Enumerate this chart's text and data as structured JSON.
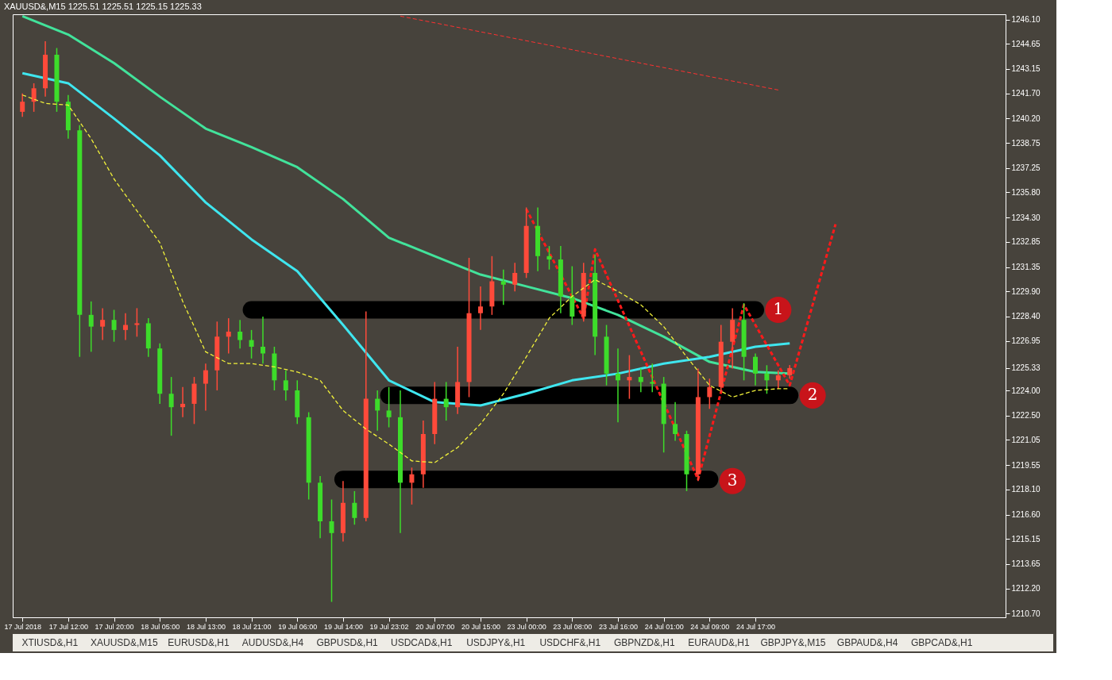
{
  "chart_data": {
    "type": "candlestick",
    "title": "XAUUSD&,M15  1225.51 1225.51 1225.15 1225.33",
    "categories": [
      "17 Jul 2018",
      null,
      null,
      null,
      "17 Jul 12:00",
      null,
      null,
      null,
      "17 Jul 20:00",
      null,
      null,
      null,
      "18 Jul 05:00",
      null,
      null,
      null,
      "18 Jul 13:00",
      null,
      null,
      null,
      "18 Jul 21:00",
      null,
      null,
      null,
      "19 Jul 06:00",
      null,
      null,
      null,
      "19 Jul 14:00",
      null,
      null,
      null,
      "19 Jul 23:02",
      null,
      null,
      null,
      "20 Jul 07:00",
      null,
      null,
      null,
      "20 Jul 15:00",
      null,
      null,
      null,
      "23 Jul 00:00",
      null,
      null,
      null,
      "23 Jul 08:00",
      null,
      null,
      null,
      "23 Jul 16:00",
      null,
      null,
      null,
      "24 Jul 01:00",
      null,
      null,
      null,
      "24 Jul 09:00",
      null,
      null,
      null,
      "24 Jul 17:00",
      null,
      null,
      null,
      null,
      null,
      null,
      null,
      null,
      null,
      null,
      null,
      null,
      null,
      null,
      null,
      null,
      null,
      null,
      null,
      null,
      null
    ],
    "ohlc": [
      [
        1240.6,
        1241.7,
        1240.3,
        1241.2
      ],
      [
        1241.2,
        1242.3,
        1240.6,
        1242.0
      ],
      [
        1242.0,
        1244.8,
        1241.5,
        1244.0
      ],
      [
        1244.0,
        1244.4,
        1240.6,
        1241.2
      ],
      [
        1241.2,
        1241.6,
        1239.0,
        1239.5
      ],
      [
        1239.5,
        1239.8,
        1226.0,
        1228.5
      ],
      [
        1228.5,
        1229.3,
        1226.3,
        1227.8
      ],
      [
        1227.8,
        1228.9,
        1227.0,
        1228.2
      ],
      [
        1228.2,
        1228.8,
        1226.9,
        1227.6
      ],
      [
        1227.6,
        1228.6,
        1227.0,
        1227.9
      ],
      [
        1227.9,
        1228.9,
        1227.2,
        1228.0
      ],
      [
        1228.0,
        1228.3,
        1226.0,
        1226.5
      ],
      [
        1226.5,
        1226.8,
        1223.2,
        1223.8
      ],
      [
        1223.8,
        1224.8,
        1221.3,
        1223.0
      ],
      [
        1223.0,
        1224.2,
        1222.4,
        1223.2
      ],
      [
        1223.2,
        1224.8,
        1222.0,
        1224.4
      ],
      [
        1224.4,
        1225.6,
        1222.8,
        1225.2
      ],
      [
        1225.2,
        1228.1,
        1224.0,
        1227.2
      ],
      [
        1227.2,
        1228.3,
        1226.2,
        1227.5
      ],
      [
        1227.5,
        1228.2,
        1226.5,
        1227.0
      ],
      [
        1227.0,
        1227.6,
        1225.9,
        1226.6
      ],
      [
        1226.6,
        1228.4,
        1225.6,
        1226.2
      ],
      [
        1226.2,
        1226.6,
        1224.0,
        1224.6
      ],
      [
        1224.6,
        1225.2,
        1223.4,
        1224.0
      ],
      [
        1224.0,
        1224.6,
        1222.0,
        1222.4
      ],
      [
        1222.4,
        1222.7,
        1217.5,
        1218.5
      ],
      [
        1218.5,
        1218.9,
        1215.2,
        1216.2
      ],
      [
        1216.2,
        1217.5,
        1211.4,
        1215.5
      ],
      [
        1215.5,
        1218.6,
        1215.0,
        1217.3
      ],
      [
        1217.3,
        1218.0,
        1216.0,
        1216.4
      ],
      [
        1216.4,
        1228.7,
        1216.2,
        1223.5
      ],
      [
        1223.5,
        1224.0,
        1221.6,
        1222.8
      ],
      [
        1222.8,
        1224.2,
        1221.8,
        1222.4
      ],
      [
        1222.4,
        1224.0,
        1215.5,
        1218.5
      ],
      [
        1218.5,
        1219.4,
        1217.2,
        1219.0
      ],
      [
        1219.0,
        1222.2,
        1218.2,
        1221.4
      ],
      [
        1221.4,
        1224.5,
        1220.8,
        1223.5
      ],
      [
        1223.5,
        1224.5,
        1222.2,
        1223.0
      ],
      [
        1223.0,
        1226.6,
        1222.6,
        1224.5
      ],
      [
        1224.5,
        1231.9,
        1223.6,
        1228.6
      ],
      [
        1228.6,
        1230.2,
        1227.6,
        1229.0
      ],
      [
        1229.0,
        1232.0,
        1228.5,
        1230.5
      ],
      [
        1230.5,
        1231.2,
        1229.1,
        1230.3
      ],
      [
        1230.3,
        1231.6,
        1229.9,
        1231.0
      ],
      [
        1231.0,
        1234.9,
        1230.7,
        1233.8
      ],
      [
        1233.8,
        1234.9,
        1231.1,
        1232.0
      ],
      [
        1232.0,
        1232.6,
        1231.2,
        1231.8
      ],
      [
        1231.8,
        1232.6,
        1228.6,
        1229.6
      ],
      [
        1229.6,
        1231.4,
        1227.9,
        1228.4
      ],
      [
        1228.4,
        1231.6,
        1228.1,
        1231.0
      ],
      [
        1231.0,
        1232.1,
        1226.1,
        1227.2
      ],
      [
        1227.2,
        1227.9,
        1224.3,
        1225.0
      ],
      [
        1225.0,
        1226.5,
        1222.1,
        1224.6
      ],
      [
        1224.6,
        1226.1,
        1223.5,
        1224.8
      ],
      [
        1224.8,
        1225.3,
        1223.9,
        1224.5
      ],
      [
        1224.5,
        1225.6,
        1223.9,
        1224.4
      ],
      [
        1224.4,
        1224.8,
        1220.3,
        1222.0
      ],
      [
        1222.0,
        1223.3,
        1221.0,
        1221.4
      ],
      [
        1221.4,
        1221.6,
        1218.0,
        1219.0
      ],
      [
        1219.0,
        1225.3,
        1218.6,
        1223.6
      ],
      [
        1223.6,
        1224.7,
        1222.9,
        1224.2
      ],
      [
        1224.2,
        1227.9,
        1223.9,
        1226.9
      ],
      [
        1226.9,
        1228.9,
        1225.3,
        1228.2
      ],
      [
        1228.2,
        1229.2,
        1224.6,
        1226.0
      ],
      [
        1226.0,
        1226.2,
        1224.3,
        1225.0
      ],
      [
        1225.0,
        1225.5,
        1223.8,
        1224.6
      ],
      [
        1224.6,
        1225.2,
        1224.1,
        1224.9
      ],
      [
        1224.9,
        1225.51,
        1224.7,
        1225.33
      ],
      null,
      null,
      null,
      null,
      null,
      null,
      null,
      null,
      null,
      null,
      null,
      null,
      null,
      null,
      null,
      null,
      null,
      null
    ],
    "colors": [
      "#ff4a3a",
      "#ff4a3a",
      "#ff4a3a",
      "#3ddc2a",
      "#3ddc2a",
      "#3ddc2a",
      "#3ddc2a",
      "#ff4a3a",
      "#3ddc2a",
      "#ff4a3a",
      "#ff4a3a",
      "#3ddc2a",
      "#3ddc2a",
      "#3ddc2a",
      "#ff4a3a",
      "#ff4a3a",
      "#ff4a3a",
      "#ff4a3a",
      "#ff4a3a",
      "#3ddc2a",
      "#3ddc2a",
      "#3ddc2a",
      "#3ddc2a",
      "#3ddc2a",
      "#3ddc2a",
      "#3ddc2a",
      "#3ddc2a",
      "#3ddc2a",
      "#ff4a3a",
      "#3ddc2a",
      "#ff4a3a",
      "#3ddc2a",
      "#3ddc2a",
      "#3ddc2a",
      "#ff4a3a",
      "#ff4a3a",
      "#ff4a3a",
      "#3ddc2a",
      "#ff4a3a",
      "#ff4a3a",
      "#ff4a3a",
      "#ff4a3a",
      "#3ddc2a",
      "#ff4a3a",
      "#ff4a3a",
      "#3ddc2a",
      "#3ddc2a",
      "#3ddc2a",
      "#3ddc2a",
      "#ff4a3a",
      "#3ddc2a",
      "#3ddc2a",
      "#3ddc2a",
      "#ff4a3a",
      "#3ddc2a",
      "#3ddc2a",
      "#3ddc2a",
      "#3ddc2a",
      "#3ddc2a",
      "#ff4a3a",
      "#ff4a3a",
      "#ff4a3a",
      "#ff4a3a",
      "#3ddc2a",
      "#3ddc2a",
      "#3ddc2a",
      "#ff4a3a",
      "#ff4a3a",
      null,
      null,
      null,
      null,
      null,
      null,
      null,
      null,
      null,
      null,
      null,
      null,
      null,
      null,
      null,
      null,
      null,
      null
    ],
    "series": [
      {
        "type": "line",
        "color": "#42e39b",
        "line_style": "solid",
        "values": [
          1246.3,
          null,
          null,
          null,
          1245.2,
          null,
          null,
          null,
          1243.5,
          null,
          null,
          null,
          1241.5,
          null,
          null,
          null,
          1239.6,
          null,
          null,
          null,
          1238.5,
          null,
          null,
          null,
          1237.3,
          null,
          null,
          null,
          1235.4,
          null,
          null,
          null,
          1233.1,
          null,
          null,
          null,
          1232.0,
          null,
          null,
          null,
          1230.9,
          null,
          null,
          null,
          1230.2,
          null,
          null,
          null,
          1229.5,
          null,
          null,
          null,
          1228.5,
          null,
          null,
          null,
          1227.2,
          null,
          null,
          null,
          1225.7,
          null,
          null,
          null,
          1225.1,
          null,
          null,
          1225.0,
          null,
          null,
          null,
          null,
          null,
          null,
          null,
          null,
          null,
          null,
          null,
          null,
          null,
          null,
          null,
          null,
          null,
          null
        ]
      },
      {
        "type": "line",
        "color": "#3fe6ef",
        "line_style": "solid",
        "values": [
          1242.9,
          null,
          null,
          null,
          1242.3,
          null,
          null,
          null,
          1240.2,
          null,
          null,
          null,
          1238.0,
          null,
          null,
          null,
          1235.2,
          null,
          null,
          null,
          1233.0,
          null,
          null,
          null,
          1231.1,
          null,
          null,
          null,
          1227.9,
          null,
          null,
          null,
          1224.6,
          null,
          null,
          null,
          1223.3,
          null,
          null,
          null,
          1223.1,
          null,
          null,
          null,
          1223.8,
          null,
          null,
          null,
          1224.6,
          null,
          null,
          null,
          1225.0,
          null,
          null,
          null,
          1225.6,
          null,
          null,
          null,
          1226.0,
          null,
          null,
          null,
          1226.6,
          null,
          null,
          1226.8,
          null,
          null,
          null,
          null,
          null,
          null,
          null,
          null,
          null,
          null,
          null,
          null,
          null,
          null,
          null,
          null,
          null,
          null
        ]
      },
      {
        "type": "line",
        "color": "#f2f23a",
        "line_style": "dashed",
        "values": [
          1241.6,
          null,
          1241.1,
          null,
          1241.0,
          null,
          1239.0,
          null,
          1236.6,
          null,
          1234.7,
          null,
          1232.8,
          null,
          1229.3,
          null,
          1226.3,
          null,
          1225.6,
          null,
          1225.6,
          null,
          1225.4,
          null,
          1225.1,
          null,
          1224.6,
          null,
          1222.8,
          null,
          1221.7,
          null,
          1220.8,
          null,
          1219.8,
          null,
          1219.7,
          null,
          1220.6,
          null,
          1222.0,
          null,
          1223.8,
          null,
          1226.0,
          null,
          1228.3,
          null,
          1229.6,
          null,
          1230.6,
          null,
          1229.9,
          null,
          1229.1,
          null,
          1227.8,
          null,
          1226.0,
          null,
          1224.3,
          null,
          1223.6,
          null,
          1224.0,
          null,
          1224.1,
          1224.1,
          null,
          null,
          null,
          null,
          null,
          null,
          null,
          null,
          null,
          null,
          null,
          null,
          null,
          null,
          null,
          null,
          null,
          null
        ]
      },
      {
        "type": "line",
        "color": "#ff3030",
        "line_style": "dashed",
        "values": [
          null,
          null,
          null,
          null,
          null,
          null,
          null,
          null,
          null,
          null,
          null,
          null,
          null,
          null,
          null,
          null,
          null,
          null,
          null,
          null,
          null,
          null,
          null,
          null,
          null,
          null,
          null,
          null,
          null,
          null,
          null,
          null,
          null,
          1246.3,
          null,
          null,
          null,
          null,
          null,
          null,
          null,
          null,
          null,
          null,
          null,
          null,
          null,
          null,
          null,
          null,
          null,
          null,
          null,
          null,
          null,
          null,
          null,
          null,
          null,
          null,
          null,
          null,
          null,
          null,
          null,
          null,
          1241.9,
          null,
          null,
          null,
          null,
          null,
          null,
          null,
          null,
          null,
          null,
          null,
          null,
          null,
          null,
          null,
          null,
          null,
          null,
          null
        ]
      },
      {
        "type": "line",
        "color": "#000000",
        "line_style": "solid",
        "values": [
          null,
          null,
          null,
          null,
          null,
          null,
          null,
          null,
          null,
          null,
          null,
          null,
          null,
          null,
          null,
          null,
          null,
          null,
          null,
          null,
          1228.8,
          null,
          null,
          null,
          null,
          null,
          null,
          null,
          null,
          null,
          null,
          null,
          null,
          null,
          null,
          null,
          null,
          null,
          null,
          null,
          null,
          null,
          null,
          null,
          null,
          null,
          null,
          null,
          null,
          null,
          null,
          null,
          null,
          null,
          null,
          null,
          null,
          null,
          null,
          null,
          null,
          null,
          null,
          null,
          1228.8,
          null,
          null,
          null,
          null,
          null,
          null,
          null,
          null,
          null,
          null,
          null,
          null,
          null,
          null,
          null,
          null,
          null,
          null,
          null,
          null,
          null
        ]
      },
      {
        "type": "line",
        "color": "#000000",
        "line_style": "solid",
        "values": [
          null,
          null,
          null,
          null,
          null,
          null,
          null,
          null,
          null,
          null,
          null,
          null,
          null,
          null,
          null,
          null,
          null,
          null,
          null,
          null,
          null,
          null,
          null,
          null,
          null,
          null,
          null,
          null,
          null,
          null,
          null,
          null,
          1223.7,
          null,
          null,
          null,
          null,
          null,
          null,
          null,
          null,
          null,
          null,
          null,
          null,
          null,
          null,
          null,
          null,
          null,
          null,
          null,
          null,
          null,
          null,
          null,
          null,
          null,
          null,
          null,
          null,
          null,
          null,
          null,
          null,
          null,
          null,
          1223.7,
          null,
          null,
          null,
          null,
          null,
          null,
          null,
          null,
          null,
          null,
          null,
          null,
          null,
          null,
          null,
          null,
          null,
          null
        ]
      },
      {
        "type": "line",
        "color": "#000000",
        "line_style": "solid",
        "values": [
          null,
          null,
          null,
          null,
          null,
          null,
          null,
          null,
          null,
          null,
          null,
          null,
          null,
          null,
          null,
          null,
          null,
          null,
          null,
          null,
          null,
          null,
          null,
          null,
          null,
          null,
          null,
          null,
          1218.7,
          null,
          null,
          null,
          null,
          null,
          null,
          null,
          null,
          null,
          null,
          null,
          null,
          null,
          null,
          null,
          null,
          null,
          null,
          null,
          null,
          null,
          null,
          null,
          null,
          null,
          null,
          null,
          null,
          null,
          null,
          null,
          1218.7,
          null,
          null,
          null,
          null,
          null,
          null,
          null,
          null,
          null,
          null,
          null,
          null,
          null,
          null,
          null,
          null,
          null,
          null,
          null,
          null,
          null,
          null,
          null,
          null,
          null
        ]
      },
      {
        "type": "line",
        "color": "#ff1a1a",
        "line_style": "dashed",
        "values": [
          null,
          null,
          null,
          null,
          null,
          null,
          null,
          null,
          null,
          null,
          null,
          null,
          null,
          null,
          null,
          null,
          null,
          null,
          null,
          null,
          null,
          null,
          null,
          null,
          null,
          null,
          null,
          null,
          null,
          null,
          null,
          null,
          null,
          null,
          null,
          null,
          null,
          null,
          null,
          null,
          null,
          null,
          null,
          null,
          1234.8,
          null,
          null,
          null,
          null,
          1228.3,
          1232.4,
          null,
          null,
          null,
          null,
          null,
          null,
          null,
          null,
          1218.7,
          null,
          null,
          null,
          1229.1,
          null,
          null,
          null,
          1224.3,
          null,
          null,
          null,
          1233.9,
          null,
          null,
          null,
          null,
          null,
          null,
          null,
          null,
          null,
          null,
          null,
          null,
          null,
          null
        ]
      },
      {
        "type": "scatter",
        "name": "1",
        "color": "#c8141a",
        "marker": "circle",
        "values": [
          null,
          null,
          null,
          null,
          null,
          null,
          null,
          null,
          null,
          null,
          null,
          null,
          null,
          null,
          null,
          null,
          null,
          null,
          null,
          null,
          null,
          null,
          null,
          null,
          null,
          null,
          null,
          null,
          null,
          null,
          null,
          null,
          null,
          null,
          null,
          null,
          null,
          null,
          null,
          null,
          null,
          null,
          null,
          null,
          null,
          null,
          null,
          null,
          null,
          null,
          null,
          null,
          null,
          null,
          null,
          null,
          null,
          null,
          null,
          null,
          null,
          null,
          null,
          null,
          null,
          null,
          1228.8,
          null,
          null,
          null,
          null,
          null,
          null,
          null,
          null,
          null,
          null,
          null,
          null,
          null,
          null,
          null,
          null,
          null,
          null,
          null
        ]
      },
      {
        "type": "scatter",
        "name": "2",
        "color": "#c8141a",
        "marker": "circle",
        "values": [
          null,
          null,
          null,
          null,
          null,
          null,
          null,
          null,
          null,
          null,
          null,
          null,
          null,
          null,
          null,
          null,
          null,
          null,
          null,
          null,
          null,
          null,
          null,
          null,
          null,
          null,
          null,
          null,
          null,
          null,
          null,
          null,
          null,
          null,
          null,
          null,
          null,
          null,
          null,
          null,
          null,
          null,
          null,
          null,
          null,
          null,
          null,
          null,
          null,
          null,
          null,
          null,
          null,
          null,
          null,
          null,
          null,
          null,
          null,
          null,
          null,
          null,
          null,
          null,
          null,
          null,
          null,
          null,
          null,
          1223.7,
          null,
          null,
          null,
          null,
          null,
          null,
          null,
          null,
          null,
          null,
          null,
          null,
          null,
          null,
          null,
          null
        ]
      },
      {
        "type": "scatter",
        "name": "3",
        "color": "#c8141a",
        "marker": "circle",
        "values": [
          null,
          null,
          null,
          null,
          null,
          null,
          null,
          null,
          null,
          null,
          null,
          null,
          null,
          null,
          null,
          null,
          null,
          null,
          null,
          null,
          null,
          null,
          null,
          null,
          null,
          null,
          null,
          null,
          null,
          null,
          null,
          null,
          null,
          null,
          null,
          null,
          null,
          null,
          null,
          null,
          null,
          null,
          null,
          null,
          null,
          null,
          null,
          null,
          null,
          null,
          null,
          null,
          null,
          null,
          null,
          null,
          null,
          null,
          null,
          null,
          null,
          null,
          1218.6,
          null,
          null,
          null,
          null,
          null,
          null,
          null,
          null,
          null,
          null,
          null,
          null,
          null,
          null,
          null,
          null,
          null,
          null,
          null,
          null,
          null,
          null,
          null
        ]
      }
    ],
    "ylim": [
      1210.48,
      1246.41
    ],
    "yticks": [
      {
        "value": 1210.7,
        "label": "1210.70"
      },
      {
        "value": 1212.2,
        "label": "1212.20"
      },
      {
        "value": 1213.65,
        "label": "1213.65"
      },
      {
        "value": 1215.15,
        "label": "1215.15"
      },
      {
        "value": 1216.6,
        "label": "1216.60"
      },
      {
        "value": 1218.1,
        "label": "1218.10"
      },
      {
        "value": 1219.55,
        "label": "1219.55"
      },
      {
        "value": 1221.05,
        "label": "1221.05"
      },
      {
        "value": 1222.5,
        "label": "1222.50"
      },
      {
        "value": 1224.0,
        "label": "1224.00"
      },
      {
        "value": 1225.33,
        "label": "1225.33"
      },
      {
        "value": 1226.95,
        "label": "1226.95"
      },
      {
        "value": 1228.4,
        "label": "1228.40"
      },
      {
        "value": 1229.9,
        "label": "1229.90"
      },
      {
        "value": 1231.35,
        "label": "1231.35"
      },
      {
        "value": 1232.85,
        "label": "1232.85"
      },
      {
        "value": 1234.3,
        "label": "1234.30"
      },
      {
        "value": 1235.8,
        "label": "1235.80"
      },
      {
        "value": 1237.25,
        "label": "1237.25"
      },
      {
        "value": 1238.75,
        "label": "1238.75"
      },
      {
        "value": 1240.2,
        "label": "1240.20"
      },
      {
        "value": 1241.7,
        "label": "1241.70"
      },
      {
        "value": 1243.15,
        "label": "1243.15"
      },
      {
        "value": 1244.65,
        "label": "1244.65"
      },
      {
        "value": 1246.1,
        "label": "1246.10"
      }
    ],
    "grid": false,
    "annotations": [
      "XTIUSD&,H1",
      "XAUUSD&,M15",
      "EURUSD&,H1",
      "AUDUSD&,H4",
      "GBPUSD&,H1",
      "USDCAD&,H1",
      "USDJPY&,H1",
      "USDCHF&,H1",
      "GBPNZD&,H1",
      "EURAUD&,H1",
      "GBPJPY&,M15",
      "GBPAUD&,H4",
      "GBPCAD&,H1"
    ]
  }
}
